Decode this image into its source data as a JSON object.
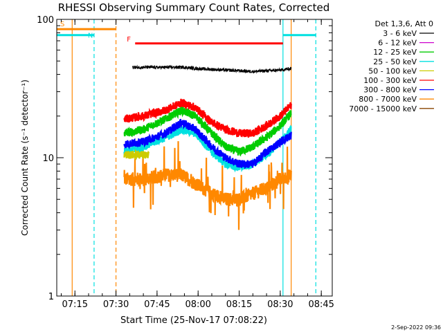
{
  "chart_data": {
    "type": "line",
    "title": "RHESSI Observing Summary Count Rates, Corrected",
    "xlabel": "Start Time (25-Nov-17 07:08:22)",
    "ylabel": "Corrected Count Rate (s⁻¹ detector⁻¹)",
    "yscale": "log",
    "ylim": [
      1,
      100
    ],
    "xlim": [
      "07:08:22",
      "08:49:00"
    ],
    "x_ticks": [
      "07:15",
      "07:30",
      "07:45",
      "08:00",
      "08:15",
      "08:30",
      "08:45"
    ],
    "y_ticks": [
      "1",
      "10",
      "100"
    ],
    "legend_title": "Det 1,3,6, Att 0",
    "legend_position": "right",
    "timestamp": "2-Sep-2022 09:36",
    "series": [
      {
        "name": "3 - 6 keV",
        "color": "#000000",
        "times": [
          "07:36",
          "07:45",
          "07:55",
          "08:00",
          "08:10",
          "08:20",
          "08:30",
          "08:34"
        ],
        "values": [
          45,
          45,
          45,
          44,
          43,
          42,
          43,
          44
        ]
      },
      {
        "name": "6 - 12 keV",
        "color": "#cc00cc",
        "times": [],
        "values": []
      },
      {
        "name": "12 - 25 keV",
        "color": "#00cc00",
        "times": [
          "07:33",
          "07:40",
          "07:48",
          "07:54",
          "07:59",
          "08:05",
          "08:10",
          "08:15",
          "08:20",
          "08:25",
          "08:30",
          "08:34"
        ],
        "values": [
          15,
          16,
          19,
          22,
          20,
          15,
          12,
          11,
          12,
          14,
          17,
          21
        ]
      },
      {
        "name": "25 - 50 keV",
        "color": "#00e0e0",
        "times": [
          "07:33",
          "07:40",
          "07:48",
          "07:54",
          "07:59",
          "08:05",
          "08:10",
          "08:15",
          "08:20",
          "08:25",
          "08:30",
          "08:34"
        ],
        "values": [
          11,
          12,
          14,
          16,
          15,
          11,
          9,
          8.5,
          9,
          10.5,
          13,
          16
        ]
      },
      {
        "name": "50 - 100 keV",
        "color": "#cccc00",
        "times": [
          "07:33",
          "07:38",
          "07:42"
        ],
        "values": [
          10.5,
          10.5,
          10.5
        ]
      },
      {
        "name": "100 - 300 keV",
        "color": "#ff0000",
        "times": [
          "07:33",
          "07:40",
          "07:48",
          "07:54",
          "07:59",
          "08:05",
          "08:10",
          "08:15",
          "08:20",
          "08:25",
          "08:30",
          "08:34"
        ],
        "values": [
          19,
          20,
          22,
          25,
          23,
          18,
          16,
          15,
          15,
          17,
          20,
          24
        ]
      },
      {
        "name": "300 - 800 keV",
        "color": "#0000ff",
        "times": [
          "07:33",
          "07:40",
          "07:48",
          "07:54",
          "07:59",
          "08:05",
          "08:10",
          "08:15",
          "08:20",
          "08:25",
          "08:30",
          "08:34"
        ],
        "values": [
          12.5,
          13,
          15,
          18,
          16,
          12,
          10,
          9,
          9,
          11,
          13,
          14.5
        ]
      },
      {
        "name": "800 - 7000 keV",
        "color": "#ff8800",
        "times": [
          "07:33",
          "07:40",
          "07:48",
          "07:54",
          "07:59",
          "08:05",
          "08:10",
          "08:15",
          "08:20",
          "08:25",
          "08:30",
          "08:34"
        ],
        "values": [
          7,
          7,
          7.5,
          7.5,
          6.5,
          5.5,
          5,
          5,
          5.5,
          6,
          7,
          7.5
        ]
      },
      {
        "name": "7000 - 15000 keV",
        "color": "#884400",
        "times": [],
        "values": []
      }
    ],
    "annotations": {
      "S": {
        "label": "S",
        "color": "#ff8800",
        "start": "07:08:22",
        "end": "07:30",
        "level": 85
      },
      "N": {
        "label": "N",
        "color": "#00e0e0",
        "start": "07:08:22",
        "end": "07:22",
        "level": 77
      },
      "N_late": {
        "color": "#00e0e0",
        "start": "08:31",
        "end": "08:43",
        "level": 77
      },
      "F": {
        "label": "F",
        "color": "#ff0000",
        "start": "07:37",
        "end": "08:31",
        "level": 67
      }
    },
    "vertical_lines": [
      {
        "time": "07:14",
        "color": "#ff8800",
        "style": "solid"
      },
      {
        "time": "07:22",
        "color": "#00e0e0",
        "style": "dashed"
      },
      {
        "time": "07:30",
        "color": "#ff8800",
        "style": "dashed"
      },
      {
        "time": "08:31",
        "color": "#00e0e0",
        "style": "solid"
      },
      {
        "time": "08:34",
        "color": "#ff8800",
        "style": "solid"
      },
      {
        "time": "08:43",
        "color": "#00e0e0",
        "style": "dashed"
      }
    ]
  }
}
